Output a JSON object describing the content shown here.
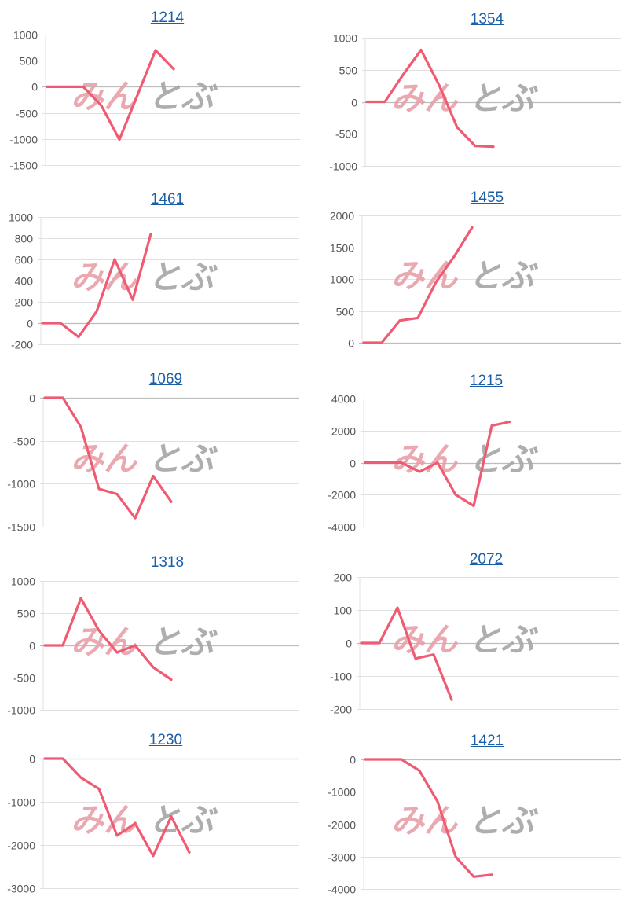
{
  "watermark": {
    "part1": "みん",
    "part2": "とぶ",
    "color1": "#e8a0a8",
    "color2": "#a6a6a6"
  },
  "line_color": "#ef5b72",
  "grid_color": "#e0e0e0",
  "axis_color": "#bdbdbd",
  "title_color": "#1a5fa8",
  "chart_data": [
    {
      "type": "line",
      "title": "1214",
      "yticks": [
        1000,
        500,
        0,
        -500,
        -1000,
        -1500
      ],
      "ylim": [
        -1500,
        1000
      ],
      "values": [
        0,
        0,
        0,
        -360,
        -1010,
        -160,
        700,
        340
      ]
    },
    {
      "type": "line",
      "title": "1354",
      "yticks": [
        1000,
        500,
        0,
        -500,
        -1000
      ],
      "ylim": [
        -1000,
        1000
      ],
      "values": [
        0,
        0,
        420,
        810,
        260,
        -400,
        -690,
        -700
      ]
    },
    {
      "type": "line",
      "title": "1461",
      "yticks": [
        1000,
        800,
        600,
        400,
        200,
        0,
        -200
      ],
      "ylim": [
        -200,
        1000
      ],
      "values": [
        0,
        0,
        -130,
        110,
        600,
        220,
        840
      ]
    },
    {
      "type": "line",
      "title": "1455",
      "yticks": [
        2000,
        1500,
        1000,
        500,
        0
      ],
      "ylim": [
        0,
        2000
      ],
      "values": [
        0,
        0,
        350,
        390,
        950,
        1350,
        1810
      ]
    },
    {
      "type": "line",
      "title": "1069",
      "yticks": [
        0,
        -500,
        -1000,
        -1500
      ],
      "ylim": [
        -1500,
        0
      ],
      "values": [
        0,
        0,
        -340,
        -1060,
        -1120,
        -1400,
        -910,
        -1210
      ]
    },
    {
      "type": "line",
      "title": "1215",
      "yticks": [
        4000,
        2000,
        0,
        -2000,
        -4000
      ],
      "ylim": [
        -4000,
        4000
      ],
      "values": [
        0,
        0,
        0,
        -570,
        0,
        -2000,
        -2700,
        2300,
        2550
      ]
    },
    {
      "type": "line",
      "title": "1318",
      "yticks": [
        1000,
        500,
        0,
        -500,
        -1000
      ],
      "ylim": [
        -1000,
        1000
      ],
      "values": [
        0,
        0,
        730,
        230,
        -110,
        0,
        -340,
        -530
      ]
    },
    {
      "type": "line",
      "title": "2072",
      "yticks": [
        200,
        100,
        0,
        -100,
        -200
      ],
      "ylim": [
        -200,
        200
      ],
      "values": [
        0,
        0,
        107,
        -47,
        -35,
        -172
      ]
    },
    {
      "type": "line",
      "title": "1230",
      "yticks": [
        0,
        -1000,
        -2000,
        -3000
      ],
      "ylim": [
        -3000,
        0
      ],
      "values": [
        0,
        0,
        -440,
        -700,
        -1780,
        -1500,
        -2250,
        -1340,
        -2170
      ]
    },
    {
      "type": "line",
      "title": "1421",
      "yticks": [
        0,
        -1000,
        -2000,
        -3000,
        -4000
      ],
      "ylim": [
        -4000,
        0
      ],
      "values": [
        0,
        0,
        0,
        -350,
        -1300,
        -3000,
        -3620,
        -3560
      ]
    }
  ]
}
